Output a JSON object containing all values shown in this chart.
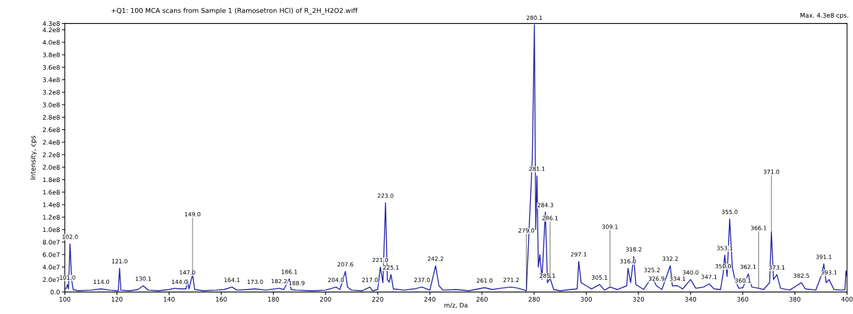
{
  "chart_data": {
    "type": "line",
    "title": "+Q1: 100 MCA scans from Sample 1 (Ramosetron HCl) of R_2H_H2O2.wiff",
    "xlabel": "m/z, Da",
    "ylabel": "Intensity, cps",
    "xlim": [
      100,
      400
    ],
    "xticks": [
      100,
      120,
      140,
      160,
      180,
      200,
      220,
      240,
      260,
      280,
      300,
      320,
      340,
      360,
      380,
      400
    ],
    "ylim": [
      0,
      430000000.0
    ],
    "yticks": [
      {
        "value": 0,
        "label": "0.0"
      },
      {
        "value": 20000000.0,
        "label": "2.0e7"
      },
      {
        "value": 40000000.0,
        "label": "4.0e7"
      },
      {
        "value": 60000000.0,
        "label": "6.0e7"
      },
      {
        "value": 80000000.0,
        "label": "8.0e7"
      },
      {
        "value": 100000000.0,
        "label": "1.0e8"
      },
      {
        "value": 120000000.0,
        "label": "1.2e8"
      },
      {
        "value": 140000000.0,
        "label": "1.4e8"
      },
      {
        "value": 160000000.0,
        "label": "1.6e8"
      },
      {
        "value": 180000000.0,
        "label": "1.8e8"
      },
      {
        "value": 200000000.0,
        "label": "2.0e8"
      },
      {
        "value": 220000000.0,
        "label": "2.2e8"
      },
      {
        "value": 240000000.0,
        "label": "2.4e8"
      },
      {
        "value": 260000000.0,
        "label": "2.6e8"
      },
      {
        "value": 280000000.0,
        "label": "2.8e8"
      },
      {
        "value": 300000000.0,
        "label": "3.0e8"
      },
      {
        "value": 320000000.0,
        "label": "3.2e8"
      },
      {
        "value": 340000000.0,
        "label": "3.4e8"
      },
      {
        "value": 360000000.0,
        "label": "3.6e8"
      },
      {
        "value": 380000000.0,
        "label": "3.8e8"
      },
      {
        "value": 400000000.0,
        "label": "4.0e8"
      },
      {
        "value": 420000000.0,
        "label": "4.2e8"
      },
      {
        "value": 430000000.0,
        "label": "4.3e8"
      }
    ],
    "grid": false,
    "legend": false,
    "line_style": "solid",
    "marker": "none",
    "series": [
      {
        "color": "#2424a8",
        "x": [
          100,
          100.6,
          101.0,
          101.4,
          102.0,
          102.6,
          103.2,
          105,
          110,
          114,
          117,
          120.5,
          121.0,
          121.5,
          125,
          128,
          130.1,
          132,
          136,
          140,
          142,
          144,
          146.5,
          147.0,
          147.6,
          149.0,
          149.8,
          153,
          158,
          161,
          164.1,
          166,
          170,
          173,
          177,
          182.2,
          184,
          186.1,
          186.8,
          188.9,
          195,
          200,
          204,
          205.5,
          207.6,
          208.4,
          210,
          214,
          217,
          218,
          220,
          221,
          222,
          223,
          223.7,
          224.4,
          225.1,
          226,
          230,
          234,
          237,
          240,
          242.2,
          243.5,
          245,
          250,
          255,
          261,
          264,
          267,
          271.2,
          274,
          277,
          279.3,
          280.1,
          280.6,
          281.1,
          281.6,
          282.2,
          283,
          284.3,
          285.1,
          286.1,
          287.5,
          290,
          294,
          296.5,
          297.1,
          298,
          300,
          302,
          305.1,
          307,
          309.1,
          312,
          315.5,
          316.0,
          317,
          318.2,
          319,
          322,
          325.2,
          326.9,
          329,
          332.2,
          333,
          335,
          337,
          340,
          342,
          345,
          347.1,
          349,
          351.5,
          352.5,
          353.1,
          354,
          355,
          356,
          357,
          358.5,
          360.1,
          362.1,
          363.5,
          366.1,
          368,
          370.3,
          371,
          371.8,
          373.1,
          374.5,
          378,
          382.5,
          384,
          388,
          390.3,
          391.1,
          392,
          393.1,
          395,
          398,
          399.2,
          399.6,
          400
        ],
        "values": [
          5000000.0,
          6000000.0,
          12000000.0,
          5000000.0,
          77000000.0,
          20000000.0,
          4000000.0,
          2000000.0,
          3000000.0,
          5000000.0,
          3000000.0,
          2000000.0,
          38000000.0,
          3000000.0,
          2000000.0,
          4000000.0,
          10000000.0,
          3000000.0,
          2000000.0,
          4000000.0,
          6000000.0,
          5000000.0,
          5000000.0,
          20000000.0,
          5000000.0,
          28000000.0,
          4000000.0,
          2000000.0,
          3000000.0,
          4000000.0,
          8000000.0,
          3000000.0,
          4000000.0,
          5000000.0,
          3000000.0,
          6000000.0,
          4000000.0,
          21000000.0,
          4000000.0,
          3000000.0,
          2000000.0,
          3000000.0,
          8000000.0,
          4000000.0,
          33000000.0,
          8000000.0,
          3000000.0,
          2000000.0,
          8000000.0,
          2000000.0,
          4000000.0,
          40000000.0,
          15000000.0,
          143000000.0,
          20000000.0,
          16000000.0,
          28000000.0,
          5000000.0,
          3000000.0,
          5000000.0,
          8000000.0,
          3000000.0,
          42000000.0,
          10000000.0,
          3000000.0,
          4000000.0,
          2000000.0,
          7000000.0,
          4000000.0,
          6000000.0,
          8000000.0,
          6000000.0,
          2000000.0,
          214000000.0,
          428000000.0,
          100000000.0,
          186000000.0,
          40000000.0,
          60000000.0,
          20000000.0,
          128000000.0,
          15000000.0,
          22000000.0,
          4000000.0,
          2000000.0,
          4000000.0,
          5000000.0,
          49000000.0,
          15000000.0,
          10000000.0,
          5000000.0,
          12000000.0,
          3000000.0,
          8000000.0,
          4000000.0,
          10000000.0,
          38000000.0,
          15000000.0,
          57000000.0,
          12000000.0,
          4000000.0,
          24000000.0,
          10000000.0,
          4000000.0,
          42000000.0,
          10000000.0,
          10000000.0,
          5000000.0,
          20000000.0,
          6000000.0,
          8000000.0,
          13000000.0,
          5000000.0,
          4000000.0,
          30000000.0,
          59000000.0,
          25000000.0,
          117000000.0,
          40000000.0,
          20000000.0,
          6000000.0,
          7000000.0,
          29000000.0,
          8000000.0,
          6000000.0,
          4000000.0,
          15000000.0,
          96000000.0,
          20000000.0,
          28000000.0,
          6000000.0,
          3000000.0,
          15000000.0,
          5000000.0,
          3000000.0,
          28000000.0,
          45000000.0,
          15000000.0,
          20000000.0,
          4000000.0,
          3000000.0,
          4000000.0,
          34000000.0,
          25000000.0
        ]
      }
    ],
    "annotations": [
      "Max. 4.3e8 cps.",
      {
        "text": "101.0",
        "x": 101.0,
        "y": 12000000.0
      },
      {
        "text": "102.0",
        "x": 102.0,
        "y": 77000000.0
      },
      {
        "text": "114.0",
        "x": 114.0,
        "y": 5000000.0
      },
      {
        "text": "121.0",
        "x": 121.0,
        "y": 38000000.0
      },
      {
        "text": "130.1",
        "x": 130.1,
        "y": 10000000.0
      },
      {
        "text": "144.0",
        "x": 144.0,
        "y": 5000000.0
      },
      {
        "text": "147.0",
        "x": 147.0,
        "y": 20000000.0
      },
      {
        "text": "149.0",
        "x": 149.0,
        "y": 28000000.0
      },
      {
        "text": "164.1",
        "x": 164.1,
        "y": 8000000.0
      },
      {
        "text": "173.0",
        "x": 173.0,
        "y": 5000000.0
      },
      {
        "text": "182.2",
        "x": 182.2,
        "y": 6000000.0
      },
      {
        "text": "186.1",
        "x": 186.1,
        "y": 21000000.0
      },
      {
        "text": "188.9",
        "x": 188.9,
        "y": 3000000.0
      },
      {
        "text": "204.0",
        "x": 204.0,
        "y": 8000000.0
      },
      {
        "text": "207.6",
        "x": 207.6,
        "y": 33000000.0
      },
      {
        "text": "217.0",
        "x": 217.0,
        "y": 8000000.0
      },
      {
        "text": "221.0",
        "x": 221.0,
        "y": 40000000.0
      },
      {
        "text": "223.0",
        "x": 223.0,
        "y": 143000000.0
      },
      {
        "text": "225.1",
        "x": 225.1,
        "y": 28000000.0
      },
      {
        "text": "237.0",
        "x": 237.0,
        "y": 8000000.0
      },
      {
        "text": "242.2",
        "x": 242.2,
        "y": 42000000.0
      },
      {
        "text": "261.0",
        "x": 261.0,
        "y": 7000000.0
      },
      {
        "text": "271.2",
        "x": 271.2,
        "y": 8000000.0
      },
      {
        "text": "279.0",
        "x": 277,
        "y": 2000000.0
      },
      {
        "text": "280.1",
        "x": 280.1,
        "y": 428000000.0
      },
      {
        "text": "281.1",
        "x": 281.1,
        "y": 186000000.0
      },
      {
        "text": "284.3",
        "x": 284.3,
        "y": 128000000.0
      },
      {
        "text": "285.1",
        "x": 285.1,
        "y": 15000000.0
      },
      {
        "text": "286.1",
        "x": 286.1,
        "y": 22000000.0
      },
      {
        "text": "297.1",
        "x": 297.1,
        "y": 49000000.0
      },
      {
        "text": "305.1",
        "x": 305.1,
        "y": 12000000.0
      },
      {
        "text": "309.1",
        "x": 309.1,
        "y": 8000000.0
      },
      {
        "text": "316.0",
        "x": 316.0,
        "y": 38000000.0
      },
      {
        "text": "318.2",
        "x": 318.2,
        "y": 57000000.0
      },
      {
        "text": "325.2",
        "x": 325.2,
        "y": 24000000.0
      },
      {
        "text": "326.9",
        "x": 326.9,
        "y": 10000000.0
      },
      {
        "text": "332.2",
        "x": 332.2,
        "y": 42000000.0
      },
      {
        "text": "334.1",
        "x": 335,
        "y": 10000000.0
      },
      {
        "text": "340.0",
        "x": 340.0,
        "y": 20000000.0
      },
      {
        "text": "347.1",
        "x": 347.1,
        "y": 13000000.0
      },
      {
        "text": "350.0",
        "x": 352.5,
        "y": 30000000.0
      },
      {
        "text": "353.1",
        "x": 353.1,
        "y": 59000000.0
      },
      {
        "text": "355.0",
        "x": 355.0,
        "y": 117000000.0
      },
      {
        "text": "360.1",
        "x": 360.1,
        "y": 7000000.0
      },
      {
        "text": "362.1",
        "x": 362.1,
        "y": 29000000.0
      },
      {
        "text": "366.1",
        "x": 366.1,
        "y": 6000000.0
      },
      {
        "text": "371.0",
        "x": 371.0,
        "y": 96000000.0
      },
      {
        "text": "373.1",
        "x": 373.1,
        "y": 28000000.0
      },
      {
        "text": "382.5",
        "x": 382.5,
        "y": 15000000.0
      },
      {
        "text": "391.1",
        "x": 391.1,
        "y": 45000000.0
      },
      {
        "text": "393.1",
        "x": 393.1,
        "y": 20000000.0
      }
    ]
  }
}
